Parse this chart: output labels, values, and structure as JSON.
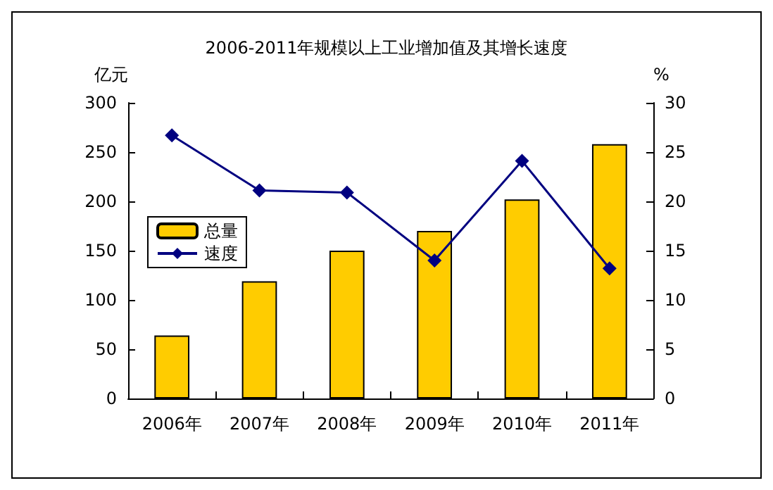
{
  "chart_data": {
    "type": "bar",
    "title": "2006-2011年规模以上工业增加值及其增长速度",
    "ylabel": "亿元",
    "y2label": "%",
    "categories": [
      "2006年",
      "2007年",
      "2008年",
      "2009年",
      "2010年",
      "2011年"
    ],
    "series": [
      {
        "name": "总量",
        "color": "#ffcc00",
        "values": [
          64,
          119,
          150,
          170,
          202,
          258
        ]
      },
      {
        "name": "速度",
        "type": "line",
        "axis": "y2",
        "color": "#000080",
        "marker": "diamond",
        "values": [
          26.7,
          21.1,
          20.9,
          14.0,
          24.1,
          13.2
        ]
      }
    ],
    "ylim": [
      0,
      300
    ],
    "yticks": [
      0,
      50,
      100,
      150,
      200,
      250,
      300
    ],
    "y2lim": [
      0,
      30
    ],
    "y2ticks": [
      0,
      5,
      10,
      15,
      20,
      25,
      30
    ],
    "grid": false,
    "legend": "left"
  }
}
